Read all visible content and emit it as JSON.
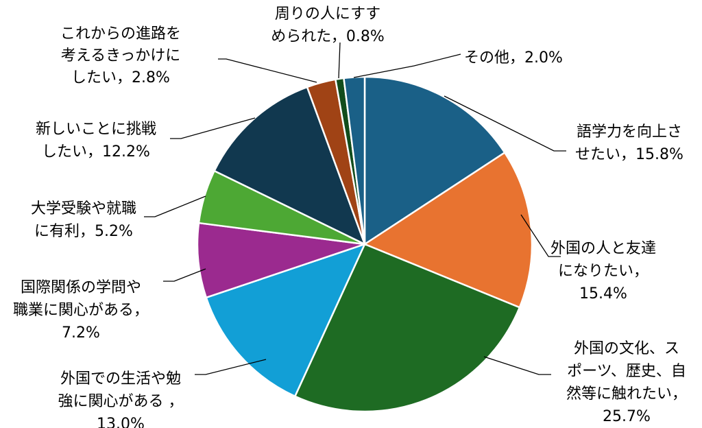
{
  "chart_data": {
    "type": "pie",
    "start": "12 o'clock",
    "direction": "clockwise",
    "unit": "%",
    "slices": [
      {
        "label": "語学力を向上させたい",
        "value": 15.8,
        "color": "#1a6087",
        "text": [
          "語学力を向上さ",
          "せたい，15.8%"
        ]
      },
      {
        "label": "外国の人と友達になりたい",
        "value": 15.4,
        "color": "#e87330",
        "text": [
          "外国の人と友達",
          "になりたい，",
          "15.4%"
        ]
      },
      {
        "label": "外国の文化、スポーツ、歴史、自然等に触れたい",
        "value": 25.7,
        "color": "#1e6b23",
        "text": [
          "外国の文化、ス",
          "ポーツ、歴史、自",
          "然等に触れたい，",
          "25.7%"
        ]
      },
      {
        "label": "外国での生活や勉強に関心がある",
        "value": 13.0,
        "color": "#129fd6",
        "text": [
          "外国での生活や勉",
          "強に関心がある ，",
          "13.0%"
        ]
      },
      {
        "label": "国際関係の学問や職業に関心がある",
        "value": 7.2,
        "color": "#9b2a8f",
        "text": [
          "国際関係の学問や",
          "職業に関心がある，",
          "7.2%"
        ]
      },
      {
        "label": "大学受験や就職に有利",
        "value": 5.2,
        "color": "#4da834",
        "text": [
          "大学受験や就職",
          "に有利，5.2%"
        ]
      },
      {
        "label": "新しいことに挑戦したい",
        "value": 12.2,
        "color": "#11384f",
        "text": [
          "新しいことに挑戦",
          "したい，12.2%"
        ]
      },
      {
        "label": "これからの進路を考えるきっかけにしたい",
        "value": 2.8,
        "color": "#a04315",
        "text": [
          "これからの進路を",
          "考えるきっかけに",
          "したい，2.8%"
        ]
      },
      {
        "label": "周りの人にすすめられた",
        "value": 0.8,
        "color": "#124d1c",
        "text": [
          "周りの人にすす",
          "められた，0.8%"
        ]
      },
      {
        "label": "その他",
        "value": 2.0,
        "color": "#1a6087",
        "text": [
          "その他，2.0%"
        ]
      }
    ]
  }
}
